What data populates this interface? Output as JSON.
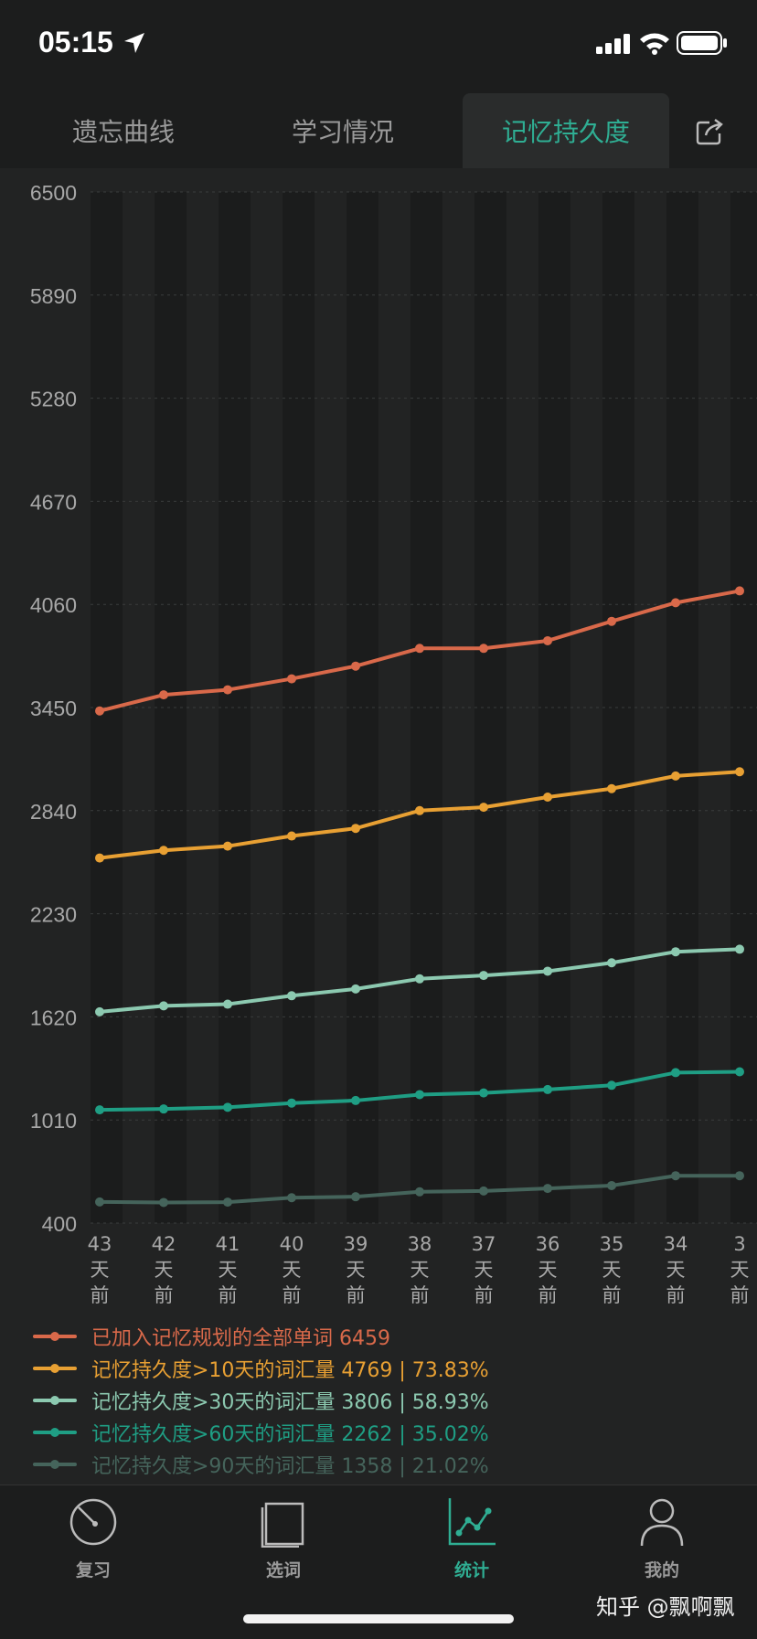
{
  "status": {
    "time": "05:15"
  },
  "tabs": [
    "遗忘曲线",
    "学习情况",
    "记忆持久度"
  ],
  "active_tab": 2,
  "colors": {
    "accent": "#2fae93",
    "series": [
      "#d9694a",
      "#e8a033",
      "#8cc9b0",
      "#1f9e84",
      "#45645b"
    ]
  },
  "chart_data": {
    "type": "line",
    "x": [
      "43\n天\n前",
      "42\n天\n前",
      "41\n天\n前",
      "40\n天\n前",
      "39\n天\n前",
      "38\n天\n前",
      "37\n天\n前",
      "36\n天\n前",
      "35\n天\n前",
      "34\n天\n前",
      "3\n天\n前"
    ],
    "yticks": [
      "6500",
      "5890",
      "5280",
      "4670",
      "4060",
      "3450",
      "2840",
      "2230",
      "1620",
      "1010",
      "400"
    ],
    "ylim": [
      400,
      6500
    ],
    "series": [
      {
        "name": "已加入记忆规划的全部单词 6459",
        "values": [
          3430,
          3525,
          3555,
          3620,
          3695,
          3800,
          3800,
          3845,
          3960,
          4070,
          4140
        ]
      },
      {
        "name": "记忆持久度>10天的词汇量 4769 | 73.83%",
        "values": [
          2560,
          2605,
          2630,
          2690,
          2735,
          2840,
          2860,
          2920,
          2970,
          3045,
          3070
        ]
      },
      {
        "name": "记忆持久度>30天的词汇量 3806 | 58.93%",
        "values": [
          1650,
          1685,
          1695,
          1745,
          1785,
          1845,
          1865,
          1890,
          1940,
          2005,
          2020
        ]
      },
      {
        "name": "记忆持久度>60天的词汇量 2262 | 35.02%",
        "values": [
          1070,
          1075,
          1085,
          1110,
          1125,
          1160,
          1170,
          1190,
          1215,
          1290,
          1295
        ]
      },
      {
        "name": "记忆持久度>90天的词汇量 1358 | 21.02%",
        "values": [
          525,
          522,
          524,
          550,
          556,
          585,
          590,
          605,
          622,
          680,
          680
        ]
      }
    ]
  },
  "bottom_nav": [
    {
      "label": "复习",
      "icon": "gauge-icon"
    },
    {
      "label": "选词",
      "icon": "book-icon"
    },
    {
      "label": "统计",
      "icon": "stats-icon"
    },
    {
      "label": "我的",
      "icon": "person-icon"
    }
  ],
  "active_nav": 2,
  "watermark": "知乎 @飘啊飘"
}
